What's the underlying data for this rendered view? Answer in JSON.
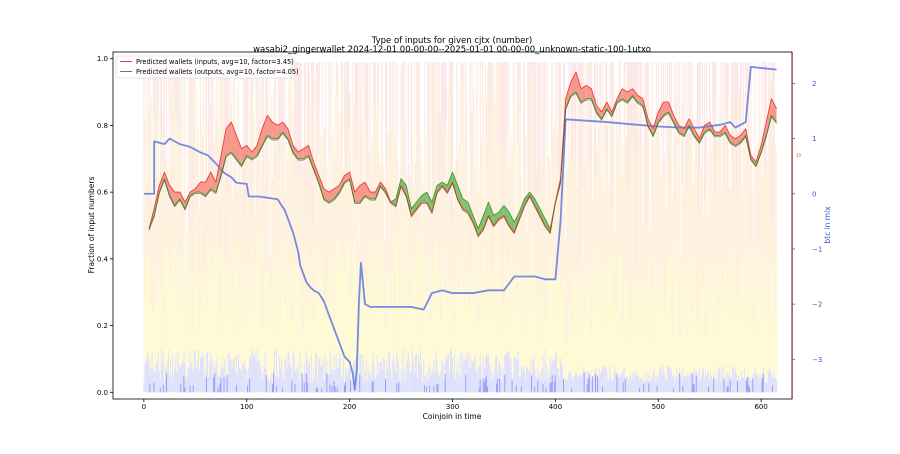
{
  "chart_data": {
    "type": "line",
    "title": "Type of inputs for given cjtx (number)",
    "subtitle": "wasabi2_gingerwallet 2024-12-01 00-00-00--2025-01-01 00-00-00_unknown-static-100-1utxo",
    "xlabel": "Coinjoin in time",
    "ylabel": "Fraction of input numbers",
    "y2label": "btc in mix",
    "xlim": [
      -30,
      630
    ],
    "ylim": [
      -0.02,
      1.02
    ],
    "y2lim": [
      -3.72,
      2.57
    ],
    "x_ticks": [
      0,
      100,
      200,
      300,
      400,
      500,
      600
    ],
    "y_ticks": [
      0.0,
      0.2,
      0.4,
      0.6,
      0.8,
      1.0
    ],
    "y2_ticks": [
      -3,
      -2,
      -1,
      0,
      1,
      2
    ],
    "x_tick_labels": [
      "0",
      "100",
      "200",
      "300",
      "400",
      "500",
      "600"
    ],
    "y_tick_labels": [
      "0.0",
      "0.2",
      "0.4",
      "0.6",
      "0.8",
      "1.0"
    ],
    "y2_tick_labels": [
      "−3",
      "−2",
      "−1",
      "0",
      "1",
      "2"
    ],
    "right_axis_annotation": "10",
    "legend_position": "top-left",
    "grid": false,
    "colors": {
      "inputs_line": "#e8413a",
      "outputs_line": "#3c9a35",
      "inputs_fill": "#f7877c",
      "outputs_fill": "#6cb95b",
      "dark_line": "#5b5a23",
      "btc_line": "#6e86dc",
      "bg_pink": "#f9d4d4",
      "bg_orange": "#fde3bf",
      "bg_yellow": "#fff6b0",
      "bg_blue": "#c9cdfa",
      "axis_right_color": "#3a55c4"
    },
    "series": [
      {
        "name": "Predicted wallets (inputs, avg=10, factor=3.45)",
        "x": [
          5,
          10,
          15,
          20,
          25,
          30,
          35,
          40,
          45,
          50,
          55,
          60,
          65,
          70,
          75,
          80,
          85,
          90,
          95,
          100,
          105,
          110,
          115,
          120,
          125,
          130,
          135,
          140,
          145,
          150,
          155,
          160,
          165,
          170,
          175,
          180,
          185,
          190,
          195,
          200,
          205,
          210,
          215,
          220,
          225,
          230,
          235,
          240,
          245,
          250,
          255,
          260,
          265,
          270,
          275,
          280,
          285,
          290,
          295,
          300,
          305,
          310,
          315,
          320,
          325,
          330,
          335,
          340,
          345,
          350,
          355,
          360,
          365,
          370,
          375,
          380,
          385,
          390,
          395,
          400,
          405,
          410,
          415,
          420,
          425,
          430,
          435,
          440,
          445,
          450,
          455,
          460,
          465,
          470,
          475,
          480,
          485,
          490,
          495,
          500,
          505,
          510,
          515,
          520,
          525,
          530,
          535,
          540,
          545,
          550,
          555,
          560,
          565,
          570,
          575,
          580,
          585,
          590,
          595,
          600,
          605,
          610,
          615
        ],
        "values": [
          0.49,
          0.55,
          0.62,
          0.66,
          0.62,
          0.6,
          0.6,
          0.57,
          0.6,
          0.61,
          0.63,
          0.63,
          0.66,
          0.63,
          0.71,
          0.79,
          0.81,
          0.77,
          0.73,
          0.74,
          0.72,
          0.74,
          0.79,
          0.83,
          0.81,
          0.8,
          0.81,
          0.79,
          0.74,
          0.72,
          0.73,
          0.74,
          0.69,
          0.65,
          0.61,
          0.6,
          0.61,
          0.62,
          0.65,
          0.66,
          0.6,
          0.62,
          0.63,
          0.6,
          0.6,
          0.63,
          0.61,
          0.57,
          0.56,
          0.62,
          0.59,
          0.53,
          0.55,
          0.57,
          0.57,
          0.54,
          0.6,
          0.62,
          0.6,
          0.63,
          0.58,
          0.55,
          0.54,
          0.51,
          0.47,
          0.49,
          0.53,
          0.5,
          0.52,
          0.53,
          0.5,
          0.48,
          0.52,
          0.56,
          0.59,
          0.56,
          0.53,
          0.5,
          0.48,
          0.57,
          0.64,
          0.88,
          0.93,
          0.96,
          0.91,
          0.92,
          0.91,
          0.86,
          0.84,
          0.87,
          0.84,
          0.88,
          0.91,
          0.9,
          0.91,
          0.89,
          0.88,
          0.82,
          0.79,
          0.84,
          0.87,
          0.87,
          0.83,
          0.8,
          0.79,
          0.82,
          0.79,
          0.76,
          0.8,
          0.81,
          0.78,
          0.78,
          0.8,
          0.77,
          0.76,
          0.77,
          0.79,
          0.71,
          0.69,
          0.74,
          0.81,
          0.88,
          0.85
        ]
      },
      {
        "name": "Predicted wallets (outputs, avg=10, factor=4.05)",
        "x": [
          5,
          10,
          15,
          20,
          25,
          30,
          35,
          40,
          45,
          50,
          55,
          60,
          65,
          70,
          75,
          80,
          85,
          90,
          95,
          100,
          105,
          110,
          115,
          120,
          125,
          130,
          135,
          140,
          145,
          150,
          155,
          160,
          165,
          170,
          175,
          180,
          185,
          190,
          195,
          200,
          205,
          210,
          215,
          220,
          225,
          230,
          235,
          240,
          245,
          250,
          255,
          260,
          265,
          270,
          275,
          280,
          285,
          290,
          295,
          300,
          305,
          310,
          315,
          320,
          325,
          330,
          335,
          340,
          345,
          350,
          355,
          360,
          365,
          370,
          375,
          380,
          385,
          390,
          395,
          400,
          405,
          410,
          415,
          420,
          425,
          430,
          435,
          440,
          445,
          450,
          455,
          460,
          465,
          470,
          475,
          480,
          485,
          490,
          495,
          500,
          505,
          510,
          515,
          520,
          525,
          530,
          535,
          540,
          545,
          550,
          555,
          560,
          565,
          570,
          575,
          580,
          585,
          590,
          595,
          600,
          605,
          610,
          615
        ],
        "values": [
          0.49,
          0.53,
          0.6,
          0.64,
          0.59,
          0.56,
          0.58,
          0.55,
          0.59,
          0.6,
          0.6,
          0.59,
          0.61,
          0.6,
          0.65,
          0.71,
          0.72,
          0.7,
          0.68,
          0.71,
          0.7,
          0.71,
          0.74,
          0.77,
          0.76,
          0.76,
          0.78,
          0.76,
          0.72,
          0.7,
          0.7,
          0.71,
          0.67,
          0.63,
          0.58,
          0.57,
          0.58,
          0.6,
          0.63,
          0.64,
          0.57,
          0.57,
          0.59,
          0.58,
          0.58,
          0.62,
          0.6,
          0.57,
          0.58,
          0.64,
          0.62,
          0.55,
          0.57,
          0.59,
          0.6,
          0.57,
          0.62,
          0.63,
          0.62,
          0.66,
          0.62,
          0.58,
          0.57,
          0.53,
          0.49,
          0.53,
          0.57,
          0.53,
          0.54,
          0.56,
          0.54,
          0.51,
          0.54,
          0.58,
          0.6,
          0.58,
          0.55,
          0.52,
          0.49,
          0.57,
          0.63,
          0.85,
          0.89,
          0.9,
          0.87,
          0.88,
          0.88,
          0.84,
          0.82,
          0.85,
          0.83,
          0.87,
          0.88,
          0.87,
          0.89,
          0.87,
          0.86,
          0.8,
          0.77,
          0.81,
          0.83,
          0.84,
          0.81,
          0.78,
          0.77,
          0.8,
          0.77,
          0.75,
          0.78,
          0.79,
          0.77,
          0.77,
          0.78,
          0.75,
          0.74,
          0.75,
          0.77,
          0.7,
          0.68,
          0.72,
          0.77,
          0.83,
          0.81
        ]
      },
      {
        "name": "btc in mix",
        "axis": "right",
        "x": [
          0,
          10,
          10,
          20,
          25,
          35,
          45,
          50,
          55,
          62,
          70,
          78,
          85,
          90,
          100,
          102,
          112,
          130,
          137,
          140,
          145,
          150,
          152,
          155,
          158,
          162,
          165,
          170,
          175,
          180,
          185,
          190,
          195,
          200,
          203,
          205,
          207,
          209,
          211,
          215,
          220,
          230,
          240,
          250,
          260,
          272,
          280,
          290,
          300,
          320,
          335,
          350,
          360,
          370,
          380,
          390,
          400,
          405,
          410,
          450,
          480,
          500,
          520,
          540,
          560,
          570,
          575,
          585,
          590,
          615
        ],
        "values": [
          0.0,
          0.0,
          0.95,
          0.9,
          1.0,
          0.9,
          0.85,
          0.8,
          0.75,
          0.7,
          0.55,
          0.38,
          0.3,
          0.2,
          0.18,
          -0.05,
          -0.05,
          -0.1,
          -0.3,
          -0.45,
          -0.7,
          -1.05,
          -1.3,
          -1.45,
          -1.6,
          -1.7,
          -1.75,
          -1.8,
          -1.95,
          -2.2,
          -2.45,
          -2.7,
          -2.95,
          -3.05,
          -3.25,
          -3.55,
          -3.2,
          -2.0,
          -1.25,
          -2.0,
          -2.05,
          -2.05,
          -2.05,
          -2.05,
          -2.05,
          -2.1,
          -1.8,
          -1.75,
          -1.8,
          -1.8,
          -1.75,
          -1.75,
          -1.5,
          -1.5,
          -1.5,
          -1.55,
          -1.55,
          -0.5,
          1.35,
          1.3,
          1.25,
          1.22,
          1.2,
          1.2,
          1.25,
          1.3,
          1.2,
          1.3,
          2.3,
          2.25
        ]
      }
    ]
  }
}
